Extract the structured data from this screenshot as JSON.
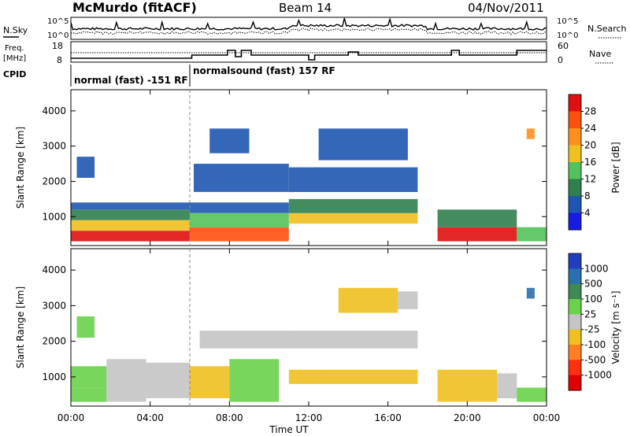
{
  "header": {
    "station": "McMurdo (fitACF)",
    "beam": "Beam 14",
    "date": "04/Nov/2011"
  },
  "params": {
    "nsky_label": "N.Sky",
    "nsky_ticks": [
      "10^5",
      "10^0"
    ],
    "nsearch_label": "N.Search",
    "nsearch_ticks": [
      "10^5",
      "10^0"
    ],
    "freq_label": "Freq.",
    "freq_unit": "[MHz]",
    "freq_ticks": [
      "18",
      "8"
    ],
    "nave_label": "Nave",
    "nave_ticks": [
      "60",
      "0"
    ],
    "cpid_label": "CPID",
    "cpid_segments": [
      {
        "label": "normal (fast) -151 RF",
        "start_h": 0,
        "end_h": 6
      },
      {
        "label": "normalsound (fast) 157 RF",
        "start_h": 6,
        "end_h": 24
      }
    ]
  },
  "power_panel": {
    "ylabel": "Slant Range [km]",
    "yticks": [
      "4000",
      "3000",
      "2000",
      "1000"
    ],
    "colorbar_label": "Power [dB]",
    "colorbar_ticks": [
      "28",
      "24",
      "20",
      "16",
      "12",
      "8",
      "4"
    ],
    "colors": [
      "#1a1ae6",
      "#1f57b0",
      "#2f7f4f",
      "#52c25a",
      "#f0c020",
      "#ff9020",
      "#ff5010",
      "#e01010"
    ]
  },
  "velocity_panel": {
    "ylabel": "Slant Range [km]",
    "yticks": [
      "4000",
      "3000",
      "2000",
      "1000"
    ],
    "colorbar_label": "Velocity [m s⁻¹]",
    "colorbar_ticks": [
      "1000",
      "500",
      "100",
      "25",
      "-25",
      "-100",
      "-500",
      "-1000"
    ],
    "colors": [
      "#1f3fbf",
      "#2a6fae",
      "#3d8a55",
      "#6ad24a",
      "#c4c4c4",
      "#f0c020",
      "#ff8020",
      "#ff3010",
      "#e00000"
    ]
  },
  "xaxis": {
    "ticks": [
      "00:00",
      "04:00",
      "08:00",
      "12:00",
      "16:00",
      "20:00",
      "00:00"
    ],
    "label": "Time UT"
  },
  "chart_data": [
    {
      "type": "heatmap",
      "title": "McMurdo (fitACF) Beam 14 04/Nov/2011",
      "xlabel": "Time UT",
      "ylabel": "Slant Range [km]",
      "xlim": [
        "00:00",
        "24:00"
      ],
      "ylim": [
        180,
        4600
      ],
      "colorbar": {
        "label": "Power [dB]",
        "range": [
          0,
          30
        ]
      },
      "blocks": [
        {
          "t0": 0.0,
          "t1": 6.0,
          "r0": 300,
          "r1": 600,
          "v": 27
        },
        {
          "t0": 0.0,
          "t1": 6.0,
          "r0": 600,
          "r1": 900,
          "v": 15
        },
        {
          "t0": 0.0,
          "t1": 6.0,
          "r0": 900,
          "r1": 1200,
          "v": 10
        },
        {
          "t0": 0.0,
          "t1": 6.0,
          "r0": 1200,
          "r1": 1400,
          "v": 7
        },
        {
          "t0": 0.3,
          "t1": 1.2,
          "r0": 2100,
          "r1": 2700,
          "v": 6
        },
        {
          "t0": 6.0,
          "t1": 11.0,
          "r0": 300,
          "r1": 700,
          "v": 24
        },
        {
          "t0": 6.0,
          "t1": 11.0,
          "r0": 700,
          "r1": 1100,
          "v": 12
        },
        {
          "t0": 6.0,
          "t1": 11.0,
          "r0": 1100,
          "r1": 1400,
          "v": 7
        },
        {
          "t0": 6.2,
          "t1": 11.0,
          "r0": 1700,
          "r1": 2500,
          "v": 6
        },
        {
          "t0": 7.0,
          "t1": 9.0,
          "r0": 2800,
          "r1": 3500,
          "v": 5
        },
        {
          "t0": 11.0,
          "t1": 17.5,
          "r0": 800,
          "r1": 1100,
          "v": 18
        },
        {
          "t0": 11.0,
          "t1": 17.5,
          "r0": 1100,
          "r1": 1500,
          "v": 8
        },
        {
          "t0": 11.0,
          "t1": 17.5,
          "r0": 1700,
          "r1": 2400,
          "v": 6
        },
        {
          "t0": 12.5,
          "t1": 17.0,
          "r0": 2600,
          "r1": 3500,
          "v": 5
        },
        {
          "t0": 18.5,
          "t1": 22.5,
          "r0": 300,
          "r1": 700,
          "v": 27
        },
        {
          "t0": 18.5,
          "t1": 22.5,
          "r0": 700,
          "r1": 1200,
          "v": 10
        },
        {
          "t0": 22.5,
          "t1": 24.0,
          "r0": 300,
          "r1": 700,
          "v": 12
        },
        {
          "t0": 23.0,
          "t1": 23.4,
          "r0": 3200,
          "r1": 3500,
          "v": 20
        }
      ]
    },
    {
      "type": "heatmap",
      "title": "McMurdo (fitACF) Beam 14 04/Nov/2011",
      "xlabel": "Time UT",
      "ylabel": "Slant Range [km]",
      "xlim": [
        "00:00",
        "24:00"
      ],
      "ylim": [
        180,
        4600
      ],
      "colorbar": {
        "label": "Velocity [m s⁻¹]",
        "range": [
          -1000,
          1000
        ]
      },
      "blocks": [
        {
          "t0": 0.0,
          "t1": 1.8,
          "r0": 300,
          "r1": 700,
          "v": 150
        },
        {
          "t0": 0.0,
          "t1": 1.8,
          "r0": 700,
          "r1": 1300,
          "v": 300
        },
        {
          "t0": 1.8,
          "t1": 3.8,
          "r0": 300,
          "r1": 1500,
          "v": 80
        },
        {
          "t0": 3.8,
          "t1": 6.0,
          "r0": 400,
          "r1": 1400,
          "v": 0
        },
        {
          "t0": 0.3,
          "t1": 1.2,
          "r0": 2100,
          "r1": 2700,
          "v": 300
        },
        {
          "t0": 6.0,
          "t1": 8.0,
          "r0": 400,
          "r1": 1300,
          "v": -200
        },
        {
          "t0": 8.0,
          "t1": 10.5,
          "r0": 300,
          "r1": 1500,
          "v": 300
        },
        {
          "t0": 6.5,
          "t1": 11.0,
          "r0": 1800,
          "r1": 2300,
          "v": 0
        },
        {
          "t0": 11.0,
          "t1": 17.5,
          "r0": 800,
          "r1": 1200,
          "v": -300
        },
        {
          "t0": 11.0,
          "t1": 17.5,
          "r0": 1800,
          "r1": 2300,
          "v": 0
        },
        {
          "t0": 13.5,
          "t1": 16.5,
          "r0": 2800,
          "r1": 3500,
          "v": -300
        },
        {
          "t0": 16.5,
          "t1": 17.5,
          "r0": 2900,
          "r1": 3400,
          "v": 0
        },
        {
          "t0": 18.5,
          "t1": 21.5,
          "r0": 300,
          "r1": 1200,
          "v": -300
        },
        {
          "t0": 21.5,
          "t1": 22.5,
          "r0": 400,
          "r1": 1100,
          "v": 0
        },
        {
          "t0": 22.5,
          "t1": 24.0,
          "r0": 300,
          "r1": 700,
          "v": 200
        },
        {
          "t0": 23.0,
          "t1": 23.4,
          "r0": 3200,
          "r1": 3500,
          "v": 600
        }
      ]
    }
  ]
}
